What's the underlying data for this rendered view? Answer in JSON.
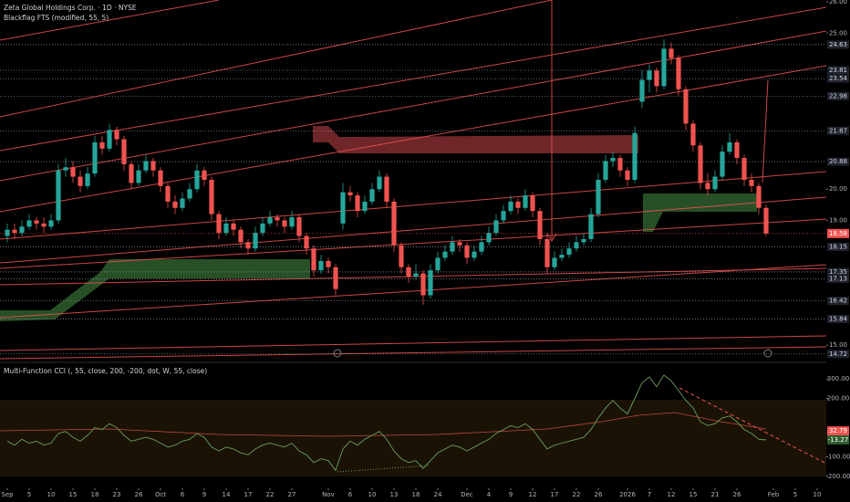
{
  "chart_data": [
    {
      "type": "candlestick",
      "title": "Zeta Global Holdings Corp. · 1D · NYSE",
      "indicator": "Blackflag FTS (modified, 55, 5)",
      "up_color": "#26a69a",
      "down_color": "#ef5350",
      "xlim": [
        -1,
        112.25
      ],
      "ylim": [
        14.51,
        26.06
      ],
      "yticks": [
        {
          "value": 26,
          "label": "26.00"
        },
        {
          "value": 25,
          "label": "25.00"
        },
        {
          "value": 20,
          "label": "20.00"
        },
        {
          "value": 19,
          "label": "19.00"
        },
        {
          "value": 15,
          "label": "15.00"
        }
      ],
      "levels": [
        24.63,
        23.81,
        23.54,
        22.98,
        21.87,
        20.88,
        18.15,
        17.35,
        17.13,
        16.42,
        15.84,
        14.72
      ],
      "xticks": [
        {
          "value": 0,
          "label": "Sep"
        },
        {
          "value": 3,
          "label": "5"
        },
        {
          "value": 6,
          "label": "10"
        },
        {
          "value": 9,
          "label": "15"
        },
        {
          "value": 12,
          "label": "18"
        },
        {
          "value": 15,
          "label": "23"
        },
        {
          "value": 18,
          "label": "26"
        },
        {
          "value": 21,
          "label": "Oct"
        },
        {
          "value": 24,
          "label": "6"
        },
        {
          "value": 27,
          "label": "9"
        },
        {
          "value": 30,
          "label": "14"
        },
        {
          "value": 33,
          "label": "17"
        },
        {
          "value": 36,
          "label": "22"
        },
        {
          "value": 39,
          "label": "27"
        },
        {
          "value": 44,
          "label": "Nov"
        },
        {
          "value": 47,
          "label": "6"
        },
        {
          "value": 50,
          "label": "10"
        },
        {
          "value": 53,
          "label": "13"
        },
        {
          "value": 56,
          "label": "18"
        },
        {
          "value": 59,
          "label": "24"
        },
        {
          "value": 63,
          "label": "Dec"
        },
        {
          "value": 66,
          "label": "4"
        },
        {
          "value": 69,
          "label": "9"
        },
        {
          "value": 72,
          "label": "12"
        },
        {
          "value": 75,
          "label": "17"
        },
        {
          "value": 78,
          "label": "22"
        },
        {
          "value": 81,
          "label": "26"
        },
        {
          "value": 85,
          "label": "2026"
        },
        {
          "value": 88,
          "label": "7"
        },
        {
          "value": 91,
          "label": "12"
        },
        {
          "value": 94,
          "label": "15"
        },
        {
          "value": 97,
          "label": "21"
        },
        {
          "value": 100,
          "label": "26"
        },
        {
          "value": 105,
          "label": "Feb"
        },
        {
          "value": 108,
          "label": "5"
        },
        {
          "value": 111,
          "label": "10"
        }
      ],
      "ohlc": [
        [
          18.5,
          18.9,
          18.3,
          18.7
        ],
        [
          18.7,
          18.9,
          18.4,
          18.6
        ],
        [
          18.6,
          19.0,
          18.5,
          18.8
        ],
        [
          18.8,
          19.2,
          18.7,
          19.0
        ],
        [
          19.0,
          19.1,
          18.7,
          18.9
        ],
        [
          18.9,
          19.1,
          18.6,
          18.8
        ],
        [
          18.8,
          19.2,
          18.7,
          19.0
        ],
        [
          19.0,
          20.8,
          18.9,
          20.6
        ],
        [
          20.6,
          21.0,
          20.4,
          20.7
        ],
        [
          20.7,
          20.9,
          20.2,
          20.4
        ],
        [
          20.4,
          20.6,
          19.9,
          20.1
        ],
        [
          20.1,
          20.7,
          20.0,
          20.5
        ],
        [
          20.5,
          21.7,
          20.4,
          21.5
        ],
        [
          21.5,
          21.7,
          21.1,
          21.3
        ],
        [
          21.3,
          22.1,
          21.2,
          21.9
        ],
        [
          21.9,
          22.0,
          21.4,
          21.6
        ],
        [
          21.6,
          21.7,
          20.6,
          20.8
        ],
        [
          20.8,
          20.9,
          20.0,
          20.2
        ],
        [
          20.2,
          20.8,
          20.1,
          20.6
        ],
        [
          20.6,
          21.1,
          20.5,
          20.9
        ],
        [
          20.9,
          21.0,
          20.4,
          20.6
        ],
        [
          20.6,
          20.7,
          19.9,
          20.1
        ],
        [
          20.1,
          20.2,
          19.4,
          19.6
        ],
        [
          19.6,
          19.8,
          19.2,
          19.4
        ],
        [
          19.4,
          19.9,
          19.3,
          19.7
        ],
        [
          19.7,
          20.2,
          19.6,
          20.0
        ],
        [
          20.0,
          20.8,
          19.9,
          20.6
        ],
        [
          20.6,
          20.7,
          20.1,
          20.3
        ],
        [
          20.3,
          20.4,
          19.0,
          19.2
        ],
        [
          19.2,
          19.3,
          18.4,
          18.6
        ],
        [
          18.6,
          19.1,
          18.5,
          18.9
        ],
        [
          18.9,
          19.0,
          18.5,
          18.7
        ],
        [
          18.7,
          18.8,
          18.1,
          18.3
        ],
        [
          18.3,
          18.4,
          17.9,
          18.1
        ],
        [
          18.1,
          18.8,
          18.0,
          18.6
        ],
        [
          18.6,
          19.1,
          18.5,
          18.9
        ],
        [
          18.9,
          19.3,
          18.8,
          19.1
        ],
        [
          19.1,
          19.2,
          18.8,
          19.0
        ],
        [
          19.0,
          19.1,
          18.6,
          18.8
        ],
        [
          18.8,
          19.3,
          18.7,
          19.1
        ],
        [
          19.1,
          19.2,
          18.3,
          18.5
        ],
        [
          18.5,
          18.6,
          17.9,
          18.1
        ],
        [
          18.1,
          18.2,
          17.2,
          17.4
        ],
        [
          17.4,
          17.9,
          17.3,
          17.7
        ],
        [
          17.7,
          17.8,
          17.3,
          17.5
        ],
        [
          17.5,
          17.6,
          16.6,
          16.8
        ],
        [
          18.9,
          20.2,
          18.7,
          19.9
        ],
        [
          19.9,
          20.1,
          19.6,
          19.8
        ],
        [
          19.8,
          19.9,
          19.1,
          19.3
        ],
        [
          19.3,
          19.8,
          19.2,
          19.6
        ],
        [
          19.6,
          20.2,
          19.5,
          20.0
        ],
        [
          20.0,
          20.6,
          19.9,
          20.4
        ],
        [
          20.4,
          20.5,
          19.4,
          19.6
        ],
        [
          19.6,
          19.7,
          18.0,
          18.2
        ],
        [
          18.2,
          18.3,
          17.3,
          17.5
        ],
        [
          17.5,
          17.6,
          17.0,
          17.2
        ],
        [
          17.2,
          17.6,
          17.1,
          17.3
        ],
        [
          17.3,
          17.4,
          16.3,
          16.6
        ],
        [
          16.6,
          17.6,
          16.5,
          17.4
        ],
        [
          17.4,
          18.0,
          17.3,
          17.8
        ],
        [
          17.8,
          18.2,
          17.7,
          18.0
        ],
        [
          18.0,
          18.5,
          17.9,
          18.3
        ],
        [
          18.3,
          18.4,
          18.0,
          18.2
        ],
        [
          18.2,
          18.3,
          17.6,
          17.8
        ],
        [
          17.8,
          18.2,
          17.7,
          18.0
        ],
        [
          18.0,
          18.5,
          17.9,
          18.3
        ],
        [
          18.3,
          18.8,
          18.2,
          18.6
        ],
        [
          18.6,
          19.2,
          18.5,
          19.0
        ],
        [
          19.0,
          19.5,
          18.9,
          19.3
        ],
        [
          19.3,
          19.8,
          19.2,
          19.6
        ],
        [
          19.6,
          19.7,
          19.2,
          19.4
        ],
        [
          19.4,
          20.0,
          19.3,
          19.8
        ],
        [
          19.8,
          19.9,
          19.1,
          19.3
        ],
        [
          19.3,
          19.4,
          18.2,
          18.4
        ],
        [
          18.4,
          18.6,
          17.3,
          17.5
        ],
        [
          17.5,
          18.0,
          17.4,
          17.8
        ],
        [
          17.8,
          18.1,
          17.7,
          17.9
        ],
        [
          17.9,
          18.3,
          17.8,
          18.1
        ],
        [
          18.1,
          18.5,
          18.0,
          18.3
        ],
        [
          18.3,
          18.6,
          18.2,
          18.4
        ],
        [
          18.4,
          19.4,
          18.3,
          19.2
        ],
        [
          19.2,
          20.5,
          19.1,
          20.3
        ],
        [
          20.3,
          21.1,
          20.2,
          20.9
        ],
        [
          20.9,
          21.2,
          20.7,
          21.0
        ],
        [
          21.0,
          21.1,
          20.4,
          20.6
        ],
        [
          20.6,
          20.7,
          20.1,
          20.3
        ],
        [
          20.3,
          22.0,
          20.2,
          21.8
        ],
        [
          22.8,
          23.8,
          22.6,
          23.5
        ],
        [
          23.5,
          24.0,
          23.1,
          23.8
        ],
        [
          23.8,
          23.9,
          23.1,
          23.3
        ],
        [
          23.3,
          24.8,
          23.2,
          24.5
        ],
        [
          24.5,
          24.7,
          24.0,
          24.2
        ],
        [
          24.2,
          24.3,
          23.0,
          23.2
        ],
        [
          23.2,
          23.3,
          21.9,
          22.1
        ],
        [
          22.1,
          22.2,
          21.2,
          21.4
        ],
        [
          21.4,
          21.5,
          20.0,
          20.2
        ],
        [
          20.2,
          20.5,
          19.8,
          20.0
        ],
        [
          20.0,
          20.6,
          19.9,
          20.4
        ],
        [
          20.4,
          21.4,
          20.3,
          21.2
        ],
        [
          21.2,
          21.8,
          21.1,
          21.5
        ],
        [
          21.5,
          21.6,
          20.8,
          21.0
        ],
        [
          21.0,
          21.1,
          20.1,
          20.3
        ],
        [
          20.3,
          20.5,
          19.9,
          20.1
        ],
        [
          20.1,
          20.2,
          19.2,
          19.4
        ],
        [
          19.4,
          19.5,
          18.5,
          18.58
        ]
      ]
    },
    {
      "type": "line",
      "title": "Multi-Function CCI (, 55, close, 200, -200, dot, W, 55, close)",
      "color": "#6b9e5b",
      "signal_color": "#ef5350",
      "signal_last": 32.79,
      "ylim": [
        -262,
        371
      ],
      "yticks": [
        {
          "value": 300,
          "label": "300.00"
        },
        {
          "value": 200,
          "label": "200.00"
        },
        {
          "value": -100,
          "label": "-100.00"
        },
        {
          "value": -200,
          "label": "-200.00"
        }
      ],
      "values": [
        -20,
        -40,
        -10,
        -30,
        -20,
        -40,
        -30,
        20,
        30,
        0,
        -20,
        10,
        50,
        40,
        70,
        50,
        10,
        -20,
        -10,
        0,
        -10,
        -30,
        -50,
        -40,
        -20,
        -10,
        20,
        0,
        -50,
        -70,
        -50,
        -60,
        -80,
        -90,
        -60,
        -40,
        -30,
        -40,
        -50,
        -30,
        -70,
        -90,
        -130,
        -110,
        -120,
        -170,
        -60,
        -20,
        -40,
        -10,
        10,
        30,
        -10,
        -70,
        -110,
        -130,
        -120,
        -160,
        -120,
        -80,
        -60,
        -40,
        -50,
        -70,
        -50,
        -30,
        -10,
        20,
        40,
        60,
        50,
        70,
        40,
        -10,
        -60,
        -40,
        -30,
        -20,
        -10,
        0,
        40,
        100,
        150,
        190,
        150,
        120,
        200,
        280,
        310,
        260,
        320,
        290,
        240,
        190,
        150,
        80,
        60,
        70,
        100,
        110,
        80,
        40,
        20,
        -10,
        -13.27
      ]
    }
  ]
}
